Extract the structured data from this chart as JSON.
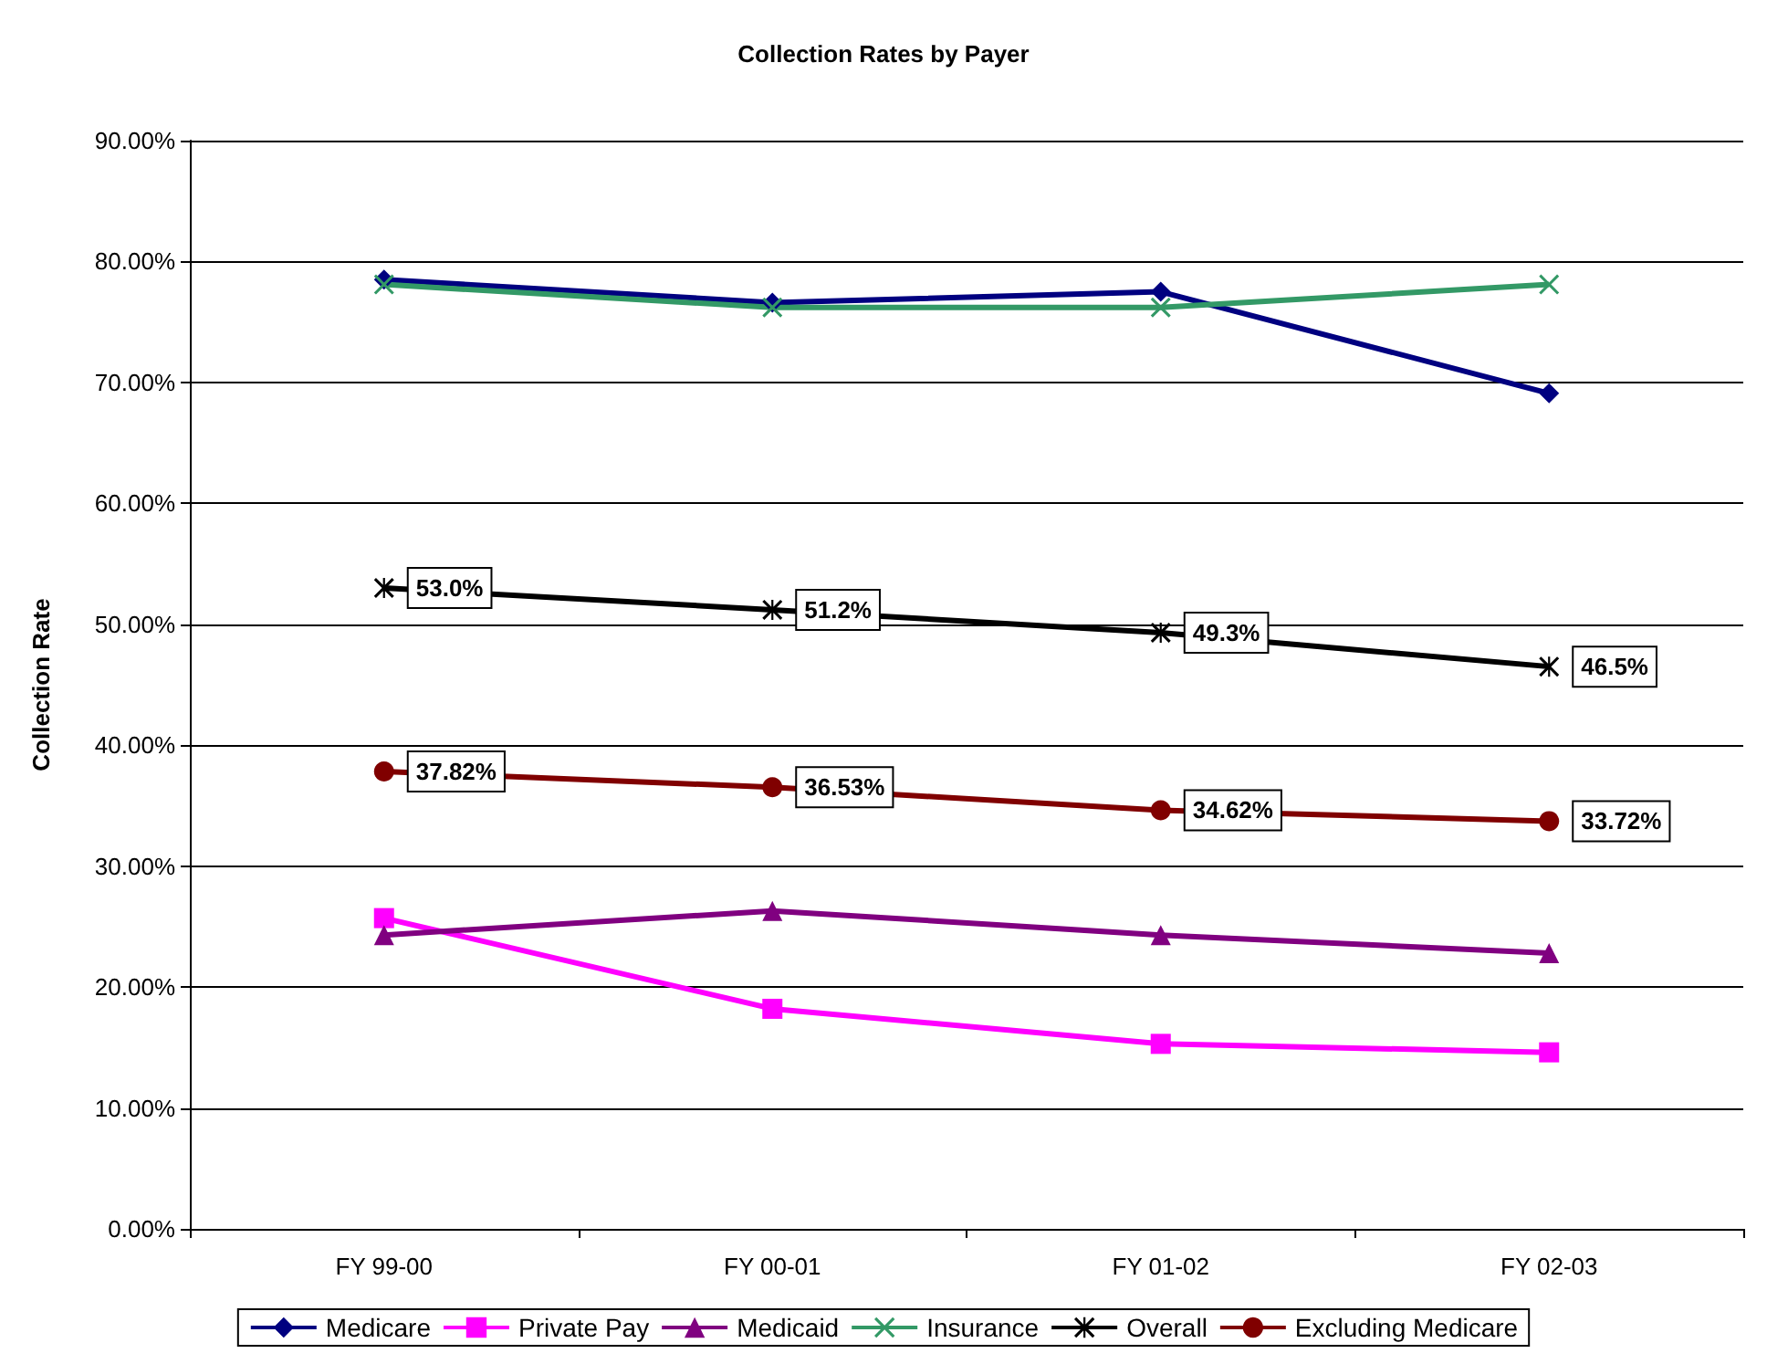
{
  "chart_data": {
    "type": "line",
    "title": "Collection Rates by Payer",
    "ylabel": "Collection Rate",
    "categories": [
      "FY 99-00",
      "FY 00-01",
      "FY 01-02",
      "FY 02-03"
    ],
    "ylim": [
      0,
      90
    ],
    "yticks": [
      {
        "value": 0,
        "label": "0.00%"
      },
      {
        "value": 10,
        "label": "10.00%"
      },
      {
        "value": 20,
        "label": "20.00%"
      },
      {
        "value": 30,
        "label": "30.00%"
      },
      {
        "value": 40,
        "label": "40.00%"
      },
      {
        "value": 50,
        "label": "50.00%"
      },
      {
        "value": 60,
        "label": "60.00%"
      },
      {
        "value": 70,
        "label": "70.00%"
      },
      {
        "value": 80,
        "label": "80.00%"
      },
      {
        "value": 90,
        "label": "90.00%"
      }
    ],
    "grid": "y",
    "legend": "bottom",
    "series": [
      {
        "name": "Medicare",
        "color": "#000080",
        "marker": "diamond",
        "values": [
          78.5,
          76.6,
          77.5,
          69.1
        ]
      },
      {
        "name": "Private Pay",
        "color": "#ff00ff",
        "marker": "square",
        "values": [
          25.7,
          18.2,
          15.3,
          14.6
        ]
      },
      {
        "name": "Medicaid",
        "color": "#800080",
        "marker": "triangle",
        "values": [
          24.3,
          26.3,
          24.3,
          22.8
        ]
      },
      {
        "name": "Insurance",
        "color": "#339966",
        "marker": "cross",
        "values": [
          78.1,
          76.2,
          76.2,
          78.1
        ]
      },
      {
        "name": "Overall",
        "color": "#000000",
        "marker": "star",
        "values": [
          53.0,
          51.2,
          49.3,
          46.5
        ],
        "value_labels": [
          "53.0%",
          "51.2%",
          "49.3%",
          "46.5%"
        ]
      },
      {
        "name": "Excluding Medicare",
        "color": "#800000",
        "marker": "circle",
        "values": [
          37.82,
          36.53,
          34.62,
          33.72
        ],
        "value_labels": [
          "37.82%",
          "36.53%",
          "34.62%",
          "33.72%"
        ]
      }
    ]
  }
}
